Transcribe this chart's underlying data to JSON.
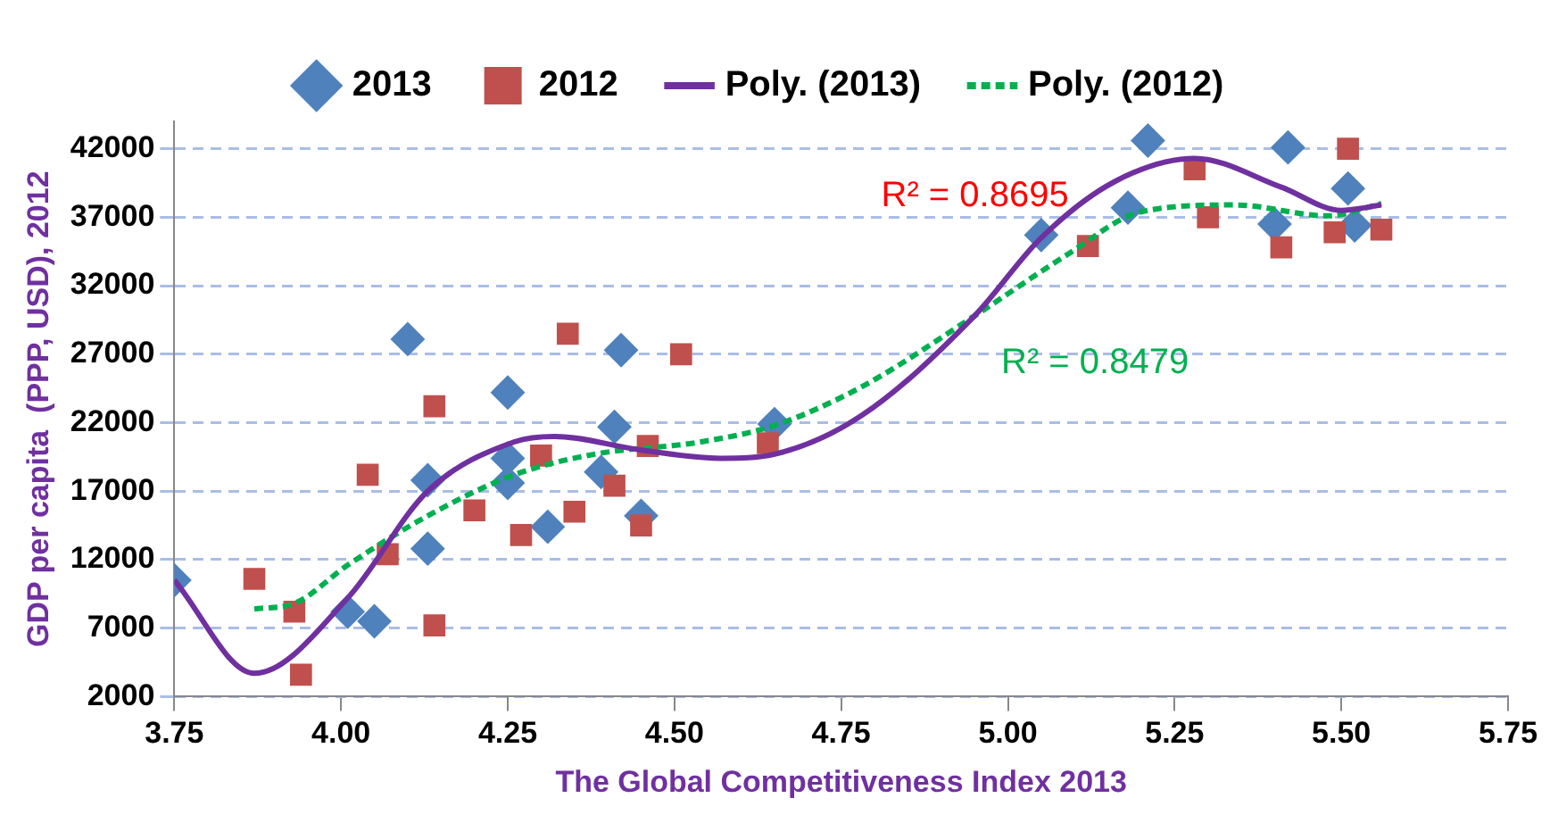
{
  "chart_data": {
    "type": "scatter",
    "xlabel": "The Global Competitiveness Index 2013",
    "ylabel": "GDP per capita  (PPP, USD), 2012",
    "legend": "top",
    "grid": "y",
    "xlim": [
      3.75,
      5.75
    ],
    "xticks": [
      3.75,
      {
        "value": 4,
        "label": "4.00"
      },
      4.25,
      {
        "value": 4.5,
        "label": "4.50"
      },
      4.75,
      {
        "value": 5,
        "label": "5.00"
      },
      5.25,
      {
        "value": 5.5,
        "label": "5.50"
      },
      5.75
    ],
    "ylim": [
      2000,
      44000
    ],
    "yticks": [
      2000,
      7000,
      12000,
      17000,
      22000,
      27000,
      32000,
      37000,
      42000
    ],
    "annotations": [
      "R² = 0.8695",
      "R² = 0.8479"
    ],
    "series": [
      {
        "name": "2013",
        "marker": "diamond",
        "color": "#4f81bd",
        "x": [
          3.75,
          4.01,
          4.05,
          4.1,
          4.13,
          4.13,
          4.25,
          4.25,
          4.25,
          4.31,
          4.42,
          4.41,
          4.39,
          4.45,
          4.65,
          5.05,
          5.18,
          5.21,
          5.42,
          5.4,
          5.51,
          5.52
        ],
        "values": [
          10500,
          8200,
          7500,
          28100,
          17800,
          12800,
          24200,
          19400,
          17600,
          14400,
          27300,
          21700,
          18400,
          15200,
          21900,
          35700,
          37700,
          42600,
          42100,
          36500,
          39100,
          36400
        ]
      },
      {
        "name": "2012",
        "marker": "square",
        "color": "#c0504d",
        "x": [
          3.87,
          3.93,
          3.94,
          4.04,
          4.14,
          4.14,
          4.07,
          4.2,
          4.27,
          4.3,
          4.34,
          4.35,
          4.41,
          4.45,
          4.46,
          4.51,
          4.64,
          5.12,
          5.28,
          5.3,
          5.41,
          5.49,
          5.51,
          5.56
        ],
        "values": [
          10600,
          8200,
          3600,
          18200,
          23200,
          7200,
          12400,
          15600,
          13800,
          19600,
          28500,
          15500,
          17400,
          14500,
          20300,
          27000,
          20500,
          34900,
          40500,
          37000,
          34800,
          35900,
          42000,
          36100
        ]
      },
      {
        "name": "Poly. (2013)",
        "type": "line",
        "marker": "none",
        "line_style": "solid",
        "color": "#7030a0",
        "x": [
          3.75,
          3.87,
          4.01,
          4.13,
          4.26,
          4.32,
          4.45,
          4.57,
          4.65,
          4.78,
          4.95,
          5.05,
          5.16,
          5.28,
          5.41,
          5.5,
          5.56
        ],
        "values": [
          10500,
          3700,
          9200,
          17000,
          20600,
          21000,
          20000,
          19400,
          19700,
          22500,
          29800,
          35500,
          39600,
          41300,
          39200,
          37500,
          37900
        ]
      },
      {
        "name": "Poly. (2012)",
        "type": "line",
        "marker": "none",
        "line_style": "dashed",
        "color": "#00b050",
        "x": [
          3.87,
          3.93,
          4.01,
          4.13,
          4.26,
          4.38,
          4.54,
          4.65,
          4.78,
          4.95,
          5.09,
          5.2,
          5.34,
          5.48,
          5.56
        ],
        "values": [
          8400,
          8800,
          11600,
          15200,
          18200,
          19700,
          20600,
          21800,
          24600,
          29800,
          34300,
          37400,
          37900,
          37100,
          38000
        ]
      }
    ]
  }
}
